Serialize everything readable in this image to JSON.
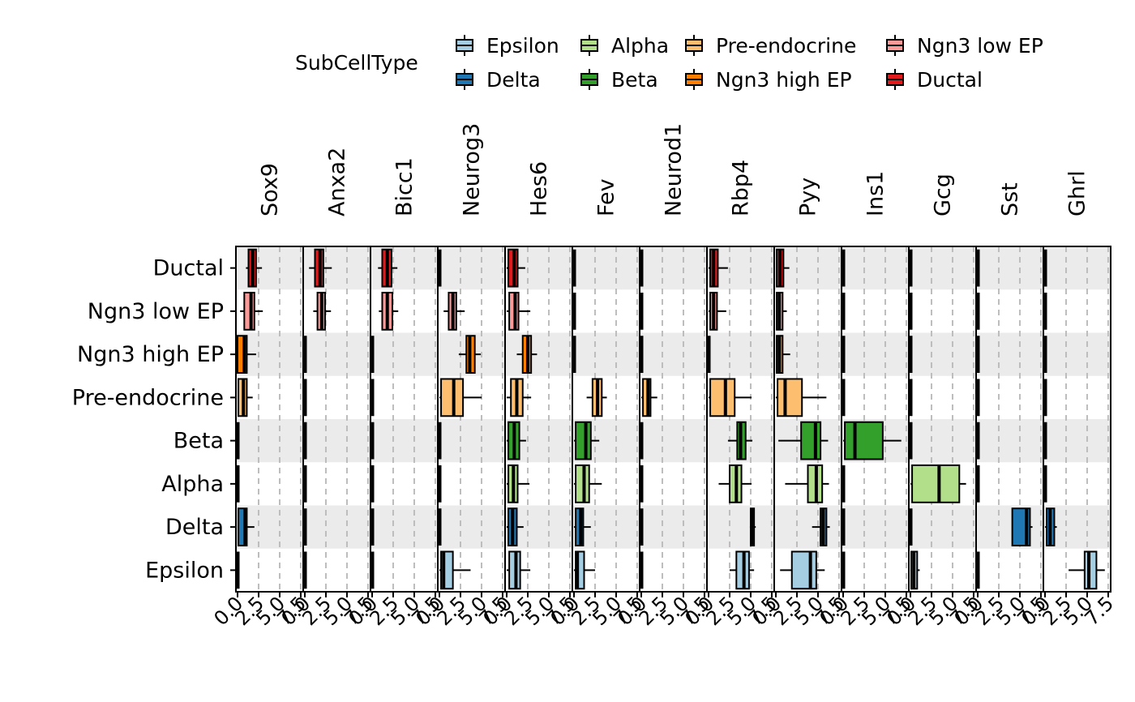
{
  "chart_data": {
    "type": "boxplot",
    "legend": {
      "title": "SubCellType",
      "entries": [
        {
          "name": "Epsilon",
          "color": "#a6cee3"
        },
        {
          "name": "Delta",
          "color": "#1f78b4"
        },
        {
          "name": "Alpha",
          "color": "#b2df8a"
        },
        {
          "name": "Beta",
          "color": "#33a02c"
        },
        {
          "name": "Pre-endocrine",
          "color": "#fdbf6f"
        },
        {
          "name": "Ngn3 high EP",
          "color": "#ff7f00"
        },
        {
          "name": "Ngn3 low EP",
          "color": "#fb9a99"
        },
        {
          "name": "Ductal",
          "color": "#e31a1c"
        }
      ],
      "placement": "top"
    },
    "categories": [
      "Ductal",
      "Ngn3 low EP",
      "Ngn3 high EP",
      "Pre-endocrine",
      "Beta",
      "Alpha",
      "Delta",
      "Epsilon"
    ],
    "xlim": [
      0,
      7.6
    ],
    "x_tick_labels": [
      "0.0",
      "2.5",
      "5.0",
      "7.5"
    ],
    "x_tick_values": [
      0,
      2.5,
      5.0,
      7.5
    ],
    "grid": "dashed vertical gridlines, alternating grey row bands",
    "panels": [
      {
        "gene": "Sox9",
        "boxes": {
          "Ductal": [
            1.0,
            1.3,
            1.8,
            2.2,
            2.9
          ],
          "Ngn3 low EP": [
            0.3,
            0.8,
            1.6,
            2.0,
            3.0
          ],
          "Ngn3 high EP": [
            0,
            0,
            0.8,
            1.1,
            2.2
          ],
          "Pre-endocrine": [
            0,
            0.1,
            0.7,
            1.1,
            1.8
          ],
          "Beta": [
            0,
            0,
            0,
            0,
            0
          ],
          "Alpha": [
            0,
            0,
            0,
            0,
            0
          ],
          "Delta": [
            0,
            0.1,
            0.9,
            1.1,
            2.0
          ],
          "Epsilon": [
            0,
            0,
            0,
            0,
            0
          ]
        }
      },
      {
        "gene": "Anxa2",
        "boxes": {
          "Ductal": [
            0.5,
            1.2,
            1.8,
            2.2,
            3.2
          ],
          "Ngn3 low EP": [
            1.0,
            1.5,
            2.0,
            2.4,
            3.1
          ],
          "Ngn3 high EP": [
            0,
            0,
            0,
            0,
            0
          ],
          "Pre-endocrine": [
            0,
            0,
            0,
            0,
            0
          ],
          "Beta": [
            0,
            0,
            0,
            0,
            0
          ],
          "Alpha": [
            0,
            0,
            0,
            0,
            0
          ],
          "Delta": [
            0,
            0,
            0,
            0,
            0
          ],
          "Epsilon": [
            0,
            0,
            0,
            0,
            0
          ]
        }
      },
      {
        "gene": "Bicc1",
        "boxes": {
          "Ductal": [
            0.7,
            1.2,
            1.8,
            2.3,
            3.0
          ],
          "Ngn3 low EP": [
            0.8,
            1.2,
            1.8,
            2.4,
            3.1
          ],
          "Ngn3 high EP": [
            0,
            0,
            0,
            0,
            0
          ],
          "Pre-endocrine": [
            0,
            0,
            0,
            0,
            0
          ],
          "Beta": [
            0,
            0,
            0,
            0,
            0
          ],
          "Alpha": [
            0,
            0,
            0,
            0,
            0
          ],
          "Delta": [
            0,
            0,
            0,
            0,
            0
          ],
          "Epsilon": [
            0,
            0,
            0,
            0,
            0
          ]
        }
      },
      {
        "gene": "Neurog3",
        "boxes": {
          "Ductal": [
            0,
            0,
            0,
            0,
            0
          ],
          "Ngn3 low EP": [
            0.5,
            1.1,
            1.6,
            2.0,
            3.0
          ],
          "Ngn3 high EP": [
            2.3,
            3.2,
            3.6,
            4.2,
            4.9
          ],
          "Pre-endocrine": [
            0,
            0.2,
            1.7,
            2.8,
            5.0
          ],
          "Beta": [
            0,
            0,
            0,
            0,
            0
          ],
          "Alpha": [
            0,
            0,
            0,
            0,
            0
          ],
          "Delta": [
            0,
            0,
            0,
            0,
            0
          ],
          "Epsilon": [
            0,
            0.2,
            0.5,
            1.6,
            3.7
          ]
        }
      },
      {
        "gene": "Hes6",
        "boxes": {
          "Ductal": [
            0,
            0.2,
            0.9,
            1.3,
            2.2
          ],
          "Ngn3 low EP": [
            0,
            0.3,
            1.0,
            1.4,
            2.8
          ],
          "Ngn3 high EP": [
            1.2,
            1.9,
            2.5,
            2.9,
            3.6
          ],
          "Pre-endocrine": [
            0,
            0.5,
            1.2,
            1.9,
            2.9
          ],
          "Beta": [
            0,
            0.2,
            0.9,
            1.5,
            2.3
          ],
          "Alpha": [
            0,
            0.2,
            0.8,
            1.3,
            2.7
          ],
          "Delta": [
            0,
            0.2,
            0.7,
            1.2,
            2.0
          ],
          "Epsilon": [
            0,
            0.3,
            1.1,
            1.6,
            2.8
          ]
        }
      },
      {
        "gene": "Fev",
        "boxes": {
          "Ductal": [
            0,
            0,
            0,
            0,
            0
          ],
          "Ngn3 low EP": [
            0,
            0,
            0,
            0,
            0
          ],
          "Ngn3 high EP": [
            0,
            0,
            0,
            0,
            0
          ],
          "Pre-endocrine": [
            1.5,
            2.2,
            2.8,
            3.3,
            3.9
          ],
          "Beta": [
            0,
            0.2,
            1.4,
            2.0,
            3.0
          ],
          "Alpha": [
            0,
            0.2,
            1.2,
            1.8,
            3.3
          ],
          "Delta": [
            0,
            0.2,
            0.8,
            1.1,
            2.0
          ],
          "Epsilon": [
            0,
            0.2,
            0.4,
            1.2,
            2.5
          ]
        }
      },
      {
        "gene": "Neurod1",
        "boxes": {
          "Ductal": [
            0,
            0,
            0,
            0,
            0
          ],
          "Ngn3 low EP": [
            0,
            0,
            0,
            0,
            0
          ],
          "Ngn3 high EP": [
            0,
            0,
            0,
            0,
            0
          ],
          "Pre-endocrine": [
            0,
            0.2,
            0.8,
            1.1,
            1.9
          ],
          "Beta": [
            0,
            0,
            0,
            0,
            0
          ],
          "Alpha": [
            0,
            0,
            0,
            0,
            0
          ],
          "Delta": [
            0,
            0,
            0,
            0,
            0
          ],
          "Epsilon": [
            0,
            0,
            0,
            0,
            0
          ]
        }
      },
      {
        "gene": "Rbp4",
        "boxes": {
          "Ductal": [
            0,
            0.2,
            0.6,
            1.1,
            2.3
          ],
          "Ngn3 low EP": [
            0,
            0.2,
            0.6,
            1.0,
            2.1
          ],
          "Ngn3 high EP": [
            0,
            0,
            0,
            0,
            0
          ],
          "Pre-endocrine": [
            0,
            0.2,
            2.0,
            3.1,
            5.1
          ],
          "Beta": [
            2.3,
            3.4,
            3.8,
            4.4,
            5.2
          ],
          "Alpha": [
            1.2,
            2.5,
            3.3,
            3.9,
            5.1
          ],
          "Delta": [
            4.9,
            5.0,
            5.2,
            5.4,
            5.6
          ],
          "Epsilon": [
            2.5,
            3.3,
            4.2,
            4.8,
            5.4
          ]
        }
      },
      {
        "gene": "Pyy",
        "boxes": {
          "Ductal": [
            0,
            0.1,
            0.5,
            0.9,
            1.6
          ],
          "Ngn3 low EP": [
            0,
            0.1,
            0.4,
            0.8,
            1.3
          ],
          "Ngn3 high EP": [
            0,
            0.1,
            0.4,
            0.8,
            1.7
          ],
          "Pre-endocrine": [
            0,
            0.2,
            1.1,
            3.1,
            6.0
          ],
          "Beta": [
            0.3,
            3.0,
            4.7,
            5.3,
            6.2
          ],
          "Alpha": [
            1.1,
            3.8,
            4.8,
            5.5,
            6.3
          ],
          "Delta": [
            4.3,
            5.3,
            5.6,
            6.0,
            6.4
          ],
          "Epsilon": [
            0.5,
            1.9,
            4.1,
            4.8,
            5.8
          ]
        }
      },
      {
        "gene": "Ins1",
        "boxes": {
          "Ductal": [
            0,
            0,
            0,
            0,
            0
          ],
          "Ngn3 low EP": [
            0,
            0,
            0,
            0,
            0
          ],
          "Ngn3 high EP": [
            0,
            0,
            0,
            0,
            0
          ],
          "Pre-endocrine": [
            0,
            0,
            0,
            0,
            0
          ],
          "Beta": [
            0,
            0.2,
            1.4,
            4.7,
            6.9
          ],
          "Alpha": [
            0,
            0,
            0,
            0,
            0
          ],
          "Delta": [
            0,
            0,
            0,
            0,
            0
          ],
          "Epsilon": [
            0,
            0,
            0,
            0,
            0
          ]
        }
      },
      {
        "gene": "Gcg",
        "boxes": {
          "Ductal": [
            0,
            0,
            0,
            0,
            0
          ],
          "Ngn3 low EP": [
            0,
            0,
            0,
            0,
            0
          ],
          "Ngn3 high EP": [
            0,
            0,
            0,
            0,
            0
          ],
          "Pre-endocrine": [
            0,
            0,
            0,
            0,
            0
          ],
          "Beta": [
            0,
            0,
            0,
            0,
            0
          ],
          "Alpha": [
            0,
            0.2,
            3.4,
            5.8,
            6.6
          ],
          "Delta": [
            0,
            0,
            0,
            0,
            0
          ],
          "Epsilon": [
            0,
            0.1,
            0.4,
            0.8,
            1.1
          ]
        }
      },
      {
        "gene": "Sst",
        "boxes": {
          "Ductal": [
            0,
            0,
            0,
            0,
            0
          ],
          "Ngn3 low EP": [
            0,
            0,
            0,
            0,
            0
          ],
          "Ngn3 high EP": [
            0,
            0,
            0,
            0,
            0
          ],
          "Pre-endocrine": [
            0,
            0,
            0,
            0,
            0
          ],
          "Beta": [
            0,
            0,
            0,
            0,
            0
          ],
          "Alpha": [
            0,
            0,
            0,
            0,
            0
          ],
          "Delta": [
            4.1,
            4.1,
            5.8,
            6.2,
            6.5
          ],
          "Epsilon": [
            0,
            0,
            0,
            0,
            0
          ]
        }
      },
      {
        "gene": "Ghrl",
        "boxes": {
          "Ductal": [
            0,
            0,
            0,
            0,
            0
          ],
          "Ngn3 low EP": [
            0,
            0,
            0,
            0,
            0
          ],
          "Ngn3 high EP": [
            0,
            0,
            0,
            0,
            0
          ],
          "Pre-endocrine": [
            0,
            0,
            0,
            0,
            0
          ],
          "Beta": [
            0,
            0,
            0,
            0,
            0
          ],
          "Alpha": [
            0,
            0,
            0,
            0,
            0
          ],
          "Delta": [
            0,
            0.2,
            0.6,
            1.1,
            1.4
          ],
          "Epsilon": [
            2.8,
            4.7,
            5.2,
            6.1,
            7.1
          ]
        }
      }
    ]
  }
}
